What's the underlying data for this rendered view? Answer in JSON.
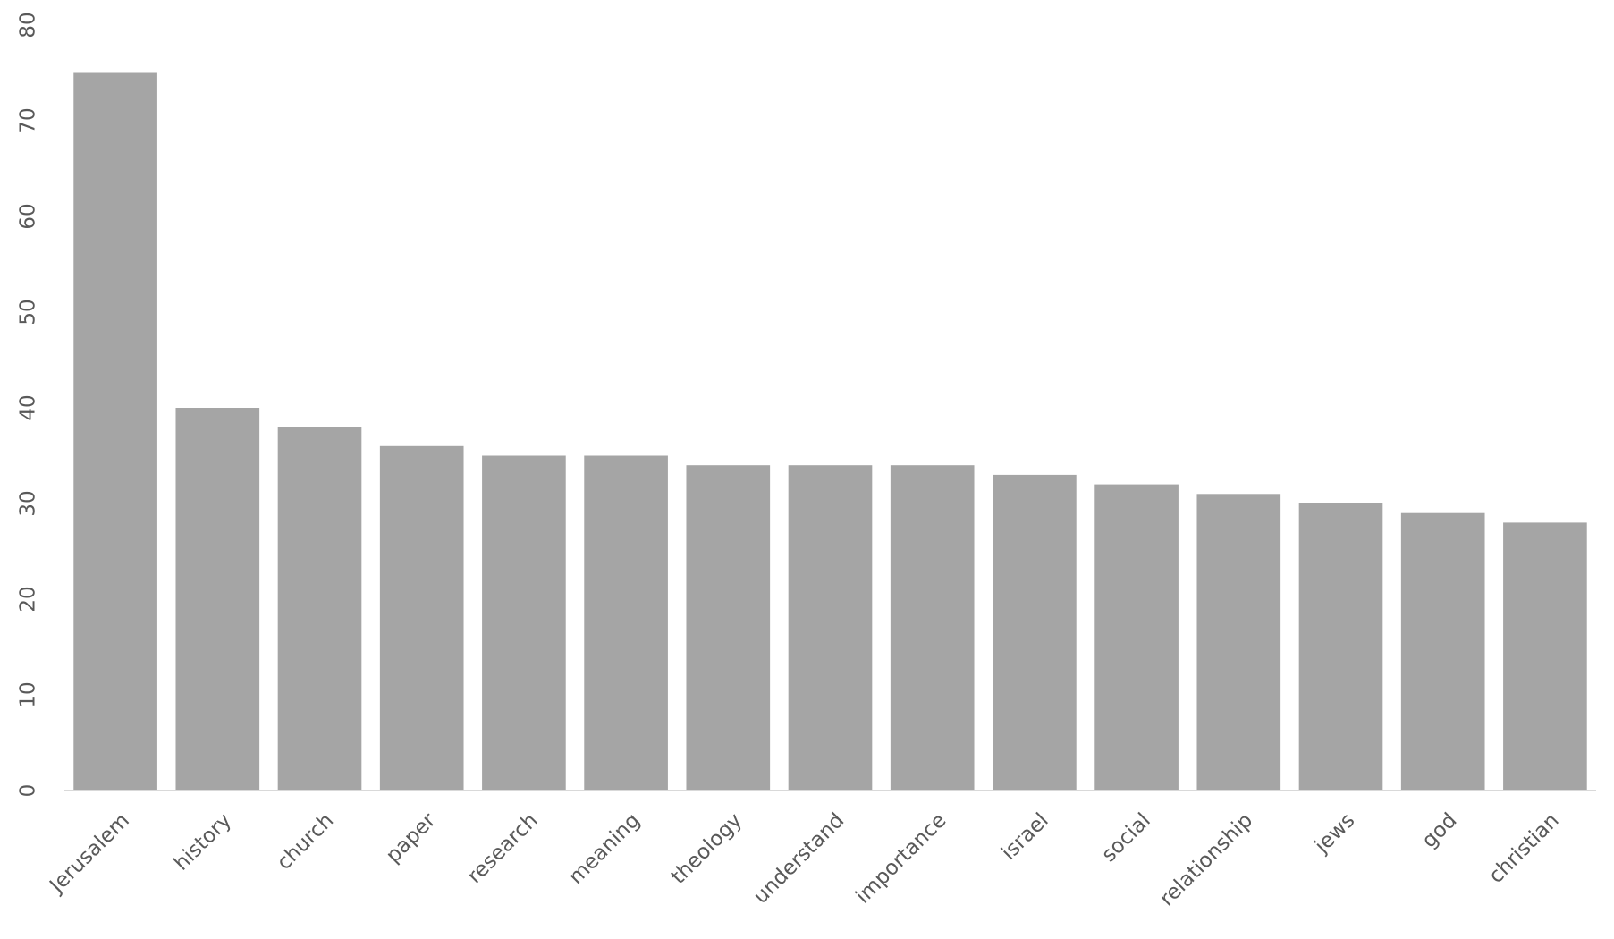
{
  "chart_data": {
    "type": "bar",
    "categories": [
      "Jerusalem",
      "history",
      "church",
      "paper",
      "research",
      "meaning",
      "theology",
      "understand",
      "importance",
      "israel",
      "social",
      "relationship",
      "jews",
      "god",
      "christian"
    ],
    "values": [
      75,
      40,
      38,
      36,
      35,
      35,
      34,
      34,
      34,
      33,
      32,
      31,
      30,
      29,
      28
    ],
    "color": "#a5a5a5",
    "ylim": [
      0,
      80
    ],
    "yticks": [
      0,
      10,
      20,
      30,
      40,
      50,
      60,
      70,
      80
    ],
    "grid": false
  }
}
